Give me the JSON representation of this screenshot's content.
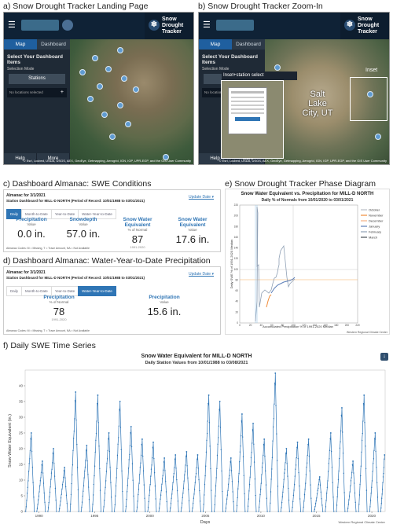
{
  "captions": {
    "a": "a) Snow Drought Tracker Landing Page",
    "b": "b) Snow Drought Tracker Zoom-In",
    "c": "c) Dashboard Almanac: SWE Conditions",
    "d": "d) Dashboard Almanac: Water-Year-to-Date Precipitation",
    "e": "e) Snow Drought Tracker Phase Diagram",
    "f": "f) Daily SWE Time Series"
  },
  "app": {
    "badge_line1": "Snow",
    "badge_line2": "Drought",
    "badge_line3": "Tracker",
    "menu_icon": "hamburger-icon",
    "tab_map": "Map",
    "tab_dashboard": "Dashboard",
    "select_heading": "Select Your Dashboard Items",
    "selection_mode": "Selection Mode",
    "stations_button": "Stations",
    "no_locations": "No locations selected",
    "help": "Help",
    "more": "More",
    "attribution": "© Esri, i-cubed, USDA, USGS, AEX, GeoEye, Getmapping, Aerogrid, IGN, IGP, UPR-EGP, and the GIS User Community",
    "inset_label": "Inset+station select",
    "city_label": "Salt Lake City, UT",
    "inset_word": "Inset"
  },
  "almanac_swe": {
    "almanac_for": "Almanac for 3/1/2021",
    "station_line": "Station Dashboard for MILL-D NORTH (Period of Record: 10/01/1988 to 03/01/2021)",
    "update_date": "Update Date",
    "tabs": [
      "Daily",
      "Month-to-Date",
      "Year-to-Date",
      "Water-Year-to-Date"
    ],
    "active_tab": 0,
    "metrics": [
      {
        "head": "Precipitation",
        "sub": "Value",
        "value": "0.0 in.",
        "years": ""
      },
      {
        "head": "Snowdepth",
        "sub": "Value",
        "value": "57.0 in.",
        "years": ""
      },
      {
        "head": "Snow Water Equivalent",
        "sub": "% of Normal",
        "value": "87",
        "years": "1991-2020"
      },
      {
        "head": "Snow Water Equivalent",
        "sub": "Value",
        "value": "17.6 in.",
        "years": ""
      }
    ],
    "footnote": "Almanac Codes: M = Missing, T = Trace Amount, NA = Not Available"
  },
  "almanac_precip": {
    "almanac_for": "Almanac for 3/1/2021",
    "station_line": "Station Dashboard for MILL-D NORTH (Period of Record: 10/01/1988 to 03/01/2021)",
    "update_date": "Update Date",
    "tabs": [
      "Daily",
      "Month-to-Date",
      "Year-to-Date",
      "Water-Year-to-Date"
    ],
    "active_tab": 3,
    "metrics": [
      {
        "head": "Precipitation",
        "sub": "% of Normal",
        "value": "78",
        "years": "1991-2020"
      },
      {
        "head": "Precipitation",
        "sub": "Value",
        "value": "15.6 in.",
        "years": ""
      }
    ],
    "footnote": "Almanac Codes: M = Missing, T = Trace Amount, NA = Not Available"
  },
  "phase_chart": {
    "title": "Snow Water Equivalent vs. Precipitation for MILL-D NORTH",
    "subtitle": "Daily % of Normals from 10/01/2020 to 03/01/2021",
    "xlabel": "Accumulated Precipitation % of 1991-2020 Median",
    "ylabel": "Daily SWE % of 1991-2020 Median",
    "credit": "Western Regional Climate Center",
    "xticks": [
      "0",
      "20",
      "40",
      "60",
      "80",
      "100",
      "120",
      "140",
      "160",
      "180",
      "200",
      "220"
    ],
    "yticks": [
      "0",
      "20",
      "40",
      "60",
      "80",
      "100",
      "120",
      "140",
      "160",
      "180",
      "200",
      "220"
    ],
    "legend": [
      {
        "label": "October",
        "color": "#b9bfc6"
      },
      {
        "label": "November",
        "color": "#f08c3a"
      },
      {
        "label": "December",
        "color": "#f3b183"
      },
      {
        "label": "January",
        "color": "#5d7fb8"
      },
      {
        "label": "February",
        "color": "#8fa0b5"
      },
      {
        "label": "March",
        "color": "#4a4f57"
      }
    ]
  },
  "chart_data": {
    "type": "line",
    "title": "Snow Water Equivalent for MILL-D NORTH",
    "subtitle": "Daily Station Values from 10/01/1988 to 03/08/2021",
    "xlabel": "Days",
    "ylabel": "Snow Water Equivalent (in.)",
    "credit": "Western Regional Climate Center",
    "xlim": [
      1988.75,
      2021.2
    ],
    "ylim": [
      0,
      45
    ],
    "xticks": [
      1990,
      1995,
      2000,
      2005,
      2010,
      2015,
      2020
    ],
    "yticks": [
      0,
      5,
      10,
      15,
      20,
      25,
      30,
      35,
      40
    ],
    "grid": false,
    "series": [
      {
        "color": "#2e75b6",
        "annual_peaks": [
          {
            "x": 1989.3,
            "y": 25
          },
          {
            "x": 1990.3,
            "y": 16
          },
          {
            "x": 1991.3,
            "y": 20
          },
          {
            "x": 1992.3,
            "y": 14
          },
          {
            "x": 1993.3,
            "y": 38
          },
          {
            "x": 1994.3,
            "y": 21
          },
          {
            "x": 1995.3,
            "y": 37
          },
          {
            "x": 1996.3,
            "y": 25
          },
          {
            "x": 1997.3,
            "y": 35
          },
          {
            "x": 1998.3,
            "y": 27
          },
          {
            "x": 1999.3,
            "y": 23
          },
          {
            "x": 2000.3,
            "y": 22
          },
          {
            "x": 2001.3,
            "y": 17
          },
          {
            "x": 2002.3,
            "y": 18
          },
          {
            "x": 2003.3,
            "y": 19
          },
          {
            "x": 2004.3,
            "y": 18
          },
          {
            "x": 2005.3,
            "y": 37
          },
          {
            "x": 2006.3,
            "y": 35
          },
          {
            "x": 2007.3,
            "y": 17
          },
          {
            "x": 2008.3,
            "y": 31
          },
          {
            "x": 2009.3,
            "y": 28
          },
          {
            "x": 2010.3,
            "y": 23
          },
          {
            "x": 2011.3,
            "y": 44
          },
          {
            "x": 2012.3,
            "y": 20
          },
          {
            "x": 2013.3,
            "y": 22
          },
          {
            "x": 2014.3,
            "y": 23
          },
          {
            "x": 2015.3,
            "y": 11
          },
          {
            "x": 2016.3,
            "y": 25
          },
          {
            "x": 2017.3,
            "y": 33
          },
          {
            "x": 2018.3,
            "y": 16
          },
          {
            "x": 2019.3,
            "y": 37
          },
          {
            "x": 2020.3,
            "y": 25
          },
          {
            "x": 2021.15,
            "y": 18
          }
        ]
      }
    ]
  }
}
